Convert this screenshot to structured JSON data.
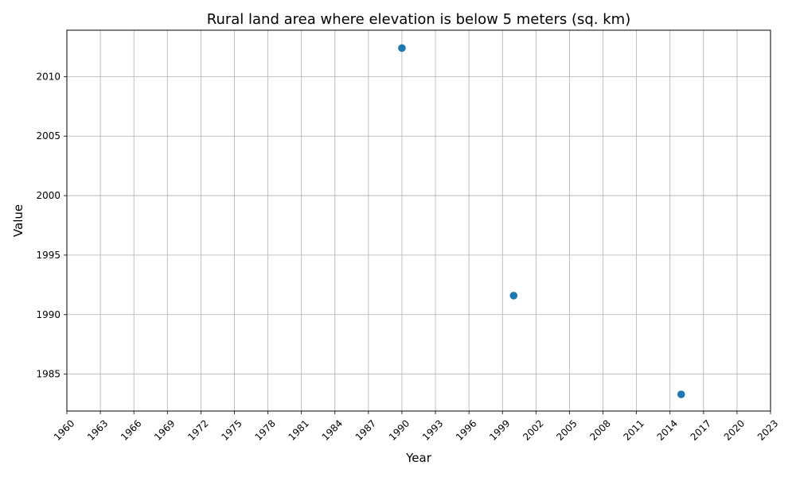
{
  "chart_data": {
    "type": "scatter",
    "title": "Rural land area where elevation is below 5 meters (sq. km)",
    "xlabel": "Year",
    "ylabel": "Value",
    "xlim": [
      1960,
      2023
    ],
    "ylim": [
      1981.9,
      2013.9
    ],
    "xticks": [
      1960,
      1963,
      1966,
      1969,
      1972,
      1975,
      1978,
      1981,
      1984,
      1987,
      1990,
      1993,
      1996,
      1999,
      2002,
      2005,
      2008,
      2011,
      2014,
      2017,
      2020,
      2023
    ],
    "yticks": [
      1985,
      1990,
      1995,
      2000,
      2005,
      2010
    ],
    "grid": true,
    "series": [
      {
        "name": "Value",
        "color": "#1f77b4",
        "points": [
          {
            "x": 1990,
            "y": 2012.4
          },
          {
            "x": 2000,
            "y": 1991.6
          },
          {
            "x": 2015,
            "y": 1983.3
          }
        ]
      }
    ]
  }
}
